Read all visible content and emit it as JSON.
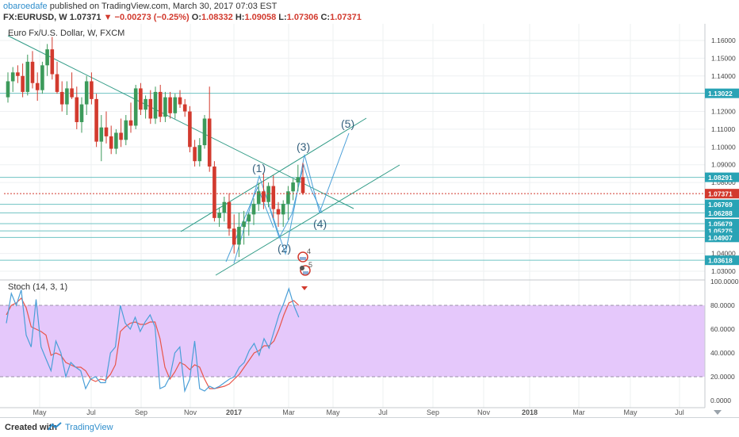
{
  "header": {
    "author": "obaroedafe",
    "published_text": " published on TradingView.com, March 30, 2017 07:03 EST",
    "symbol": "FX:EURUSD, W",
    "last": "1.07371",
    "change": "−0.00273 (−0.25%)",
    "o_label": "O:",
    "o_value": "1.08332",
    "h_label": "H:",
    "h_value": "1.09058",
    "l_label": "L:",
    "l_value": "1.07306",
    "c_label": "C:",
    "c_value": "1.07371"
  },
  "footer": {
    "created_with": "Created with",
    "brand": "TradingView"
  },
  "colors": {
    "up": "#3c9a5a",
    "down": "#d23a2e",
    "trend": "#2e9a85",
    "hline": "#6fc3c3",
    "wave": "#4a9fd8",
    "stoch_k": "#4a9fd8",
    "stoch_d": "#e8554a",
    "stoch_band": "#e5c8fb",
    "label_bg": "#29a3b5"
  },
  "icons": [
    "stoch-down-arrow-icon",
    "event-flag-icon",
    "chart-settings-icon",
    "tradingview-logo-icon"
  ],
  "chart_data": {
    "type": "candlestick",
    "title": "Euro Fx/U.S. Dollar, W, FXCM",
    "y_range": [
      1.025,
      1.168
    ],
    "y_ticks": [
      "1.16000",
      "1.15000",
      "1.14000",
      "1.12000",
      "1.11000",
      "1.10000",
      "1.09000",
      "1.08000",
      "1.04000",
      "1.03000"
    ],
    "x_tick_labels": [
      "May",
      "Jul",
      "Sep",
      "Nov",
      "2017",
      "Mar",
      "May",
      "Jul",
      "Sep",
      "Nov",
      "2018",
      "Mar",
      "May",
      "Jul"
    ],
    "candles": [
      [
        1.128,
        1.142,
        1.125,
        1.137
      ],
      [
        1.137,
        1.145,
        1.131,
        1.142
      ],
      [
        1.142,
        1.146,
        1.136,
        1.14
      ],
      [
        1.14,
        1.147,
        1.128,
        1.131
      ],
      [
        1.131,
        1.152,
        1.129,
        1.148
      ],
      [
        1.148,
        1.154,
        1.133,
        1.136
      ],
      [
        1.136,
        1.142,
        1.126,
        1.132
      ],
      [
        1.132,
        1.148,
        1.13,
        1.146
      ],
      [
        1.146,
        1.158,
        1.14,
        1.155
      ],
      [
        1.155,
        1.162,
        1.138,
        1.141
      ],
      [
        1.141,
        1.148,
        1.13,
        1.131
      ],
      [
        1.131,
        1.137,
        1.12,
        1.124
      ],
      [
        1.124,
        1.137,
        1.118,
        1.133
      ],
      [
        1.133,
        1.142,
        1.127,
        1.128
      ],
      [
        1.128,
        1.134,
        1.11,
        1.114
      ],
      [
        1.114,
        1.128,
        1.108,
        1.124
      ],
      [
        1.124,
        1.14,
        1.118,
        1.137
      ],
      [
        1.137,
        1.142,
        1.124,
        1.127
      ],
      [
        1.127,
        1.13,
        1.1,
        1.103
      ],
      [
        1.103,
        1.118,
        1.092,
        1.111
      ],
      [
        1.111,
        1.12,
        1.102,
        1.106
      ],
      [
        1.106,
        1.112,
        1.096,
        1.099
      ],
      [
        1.099,
        1.11,
        1.096,
        1.108
      ],
      [
        1.108,
        1.116,
        1.1,
        1.104
      ],
      [
        1.104,
        1.118,
        1.101,
        1.115
      ],
      [
        1.115,
        1.125,
        1.108,
        1.112
      ],
      [
        1.112,
        1.135,
        1.11,
        1.133
      ],
      [
        1.133,
        1.136,
        1.118,
        1.121
      ],
      [
        1.121,
        1.129,
        1.116,
        1.127
      ],
      [
        1.127,
        1.132,
        1.113,
        1.116
      ],
      [
        1.116,
        1.134,
        1.113,
        1.131
      ],
      [
        1.131,
        1.135,
        1.114,
        1.117
      ],
      [
        1.117,
        1.131,
        1.114,
        1.128
      ],
      [
        1.128,
        1.131,
        1.116,
        1.119
      ],
      [
        1.119,
        1.13,
        1.116,
        1.128
      ],
      [
        1.128,
        1.132,
        1.122,
        1.124
      ],
      [
        1.124,
        1.127,
        1.117,
        1.12
      ],
      [
        1.12,
        1.123,
        1.097,
        1.1
      ],
      [
        1.1,
        1.104,
        1.089,
        1.092
      ],
      [
        1.092,
        1.105,
        1.089,
        1.101
      ],
      [
        1.101,
        1.118,
        1.099,
        1.116
      ],
      [
        1.116,
        1.134,
        1.086,
        1.089
      ],
      [
        1.089,
        1.092,
        1.058,
        1.06
      ],
      [
        1.06,
        1.066,
        1.055,
        1.063
      ],
      [
        1.063,
        1.072,
        1.058,
        1.069
      ],
      [
        1.069,
        1.074,
        1.05,
        1.054
      ],
      [
        1.054,
        1.062,
        1.04,
        1.045
      ],
      [
        1.045,
        1.063,
        1.038,
        1.055
      ],
      [
        1.055,
        1.064,
        1.045,
        1.058
      ],
      [
        1.058,
        1.063,
        1.05,
        1.062
      ],
      [
        1.062,
        1.071,
        1.056,
        1.068
      ],
      [
        1.068,
        1.08,
        1.064,
        1.075
      ],
      [
        1.075,
        1.085,
        1.065,
        1.069
      ],
      [
        1.069,
        1.08,
        1.066,
        1.078
      ],
      [
        1.078,
        1.084,
        1.06,
        1.065
      ],
      [
        1.065,
        1.069,
        1.055,
        1.062
      ],
      [
        1.062,
        1.07,
        1.055,
        1.068
      ],
      [
        1.068,
        1.078,
        1.059,
        1.075
      ],
      [
        1.075,
        1.082,
        1.07,
        1.08
      ],
      [
        1.08,
        1.09,
        1.075,
        1.083
      ],
      [
        1.083,
        1.091,
        1.073,
        1.074
      ]
    ],
    "horizontal_levels": [
      {
        "value": 1.13022,
        "label": "1.13022"
      },
      {
        "value": 1.08291,
        "label": "1.08291"
      },
      {
        "value": 1.06769,
        "label": "1.06769"
      },
      {
        "value": 1.06288,
        "label": "1.06288"
      },
      {
        "value": 1.05679,
        "label": "1.05679"
      },
      {
        "value": 1.05275,
        "label": "1.05275"
      },
      {
        "value": 1.04907,
        "label": "1.04907"
      },
      {
        "value": 1.03618,
        "label": "1.03618"
      }
    ],
    "last_price": {
      "value": 1.07371,
      "label": "1.07371"
    },
    "wave_labels": [
      "(1)",
      "(2)",
      "(3)",
      "(4)",
      "(5)"
    ],
    "event_marker_texts": [
      "4",
      "5"
    ],
    "stochastic": {
      "title": "Stoch (14, 3, 1)",
      "y_range": [
        0,
        100
      ],
      "y_ticks": [
        "100.0000",
        "80.0000",
        "60.0000",
        "40.0000",
        "20.0000",
        "0.0000"
      ],
      "band": [
        20,
        80
      ],
      "k": [
        65,
        90,
        80,
        93,
        55,
        45,
        85,
        45,
        35,
        25,
        50,
        40,
        20,
        32,
        28,
        25,
        10,
        18,
        20,
        15,
        15,
        40,
        45,
        80,
        65,
        60,
        70,
        58,
        66,
        72,
        62,
        10,
        12,
        20,
        40,
        45,
        8,
        18,
        50,
        10,
        8,
        12,
        10,
        12,
        15,
        18,
        20,
        28,
        32,
        42,
        48,
        38,
        52,
        44,
        58,
        72,
        82,
        94,
        80,
        70
      ],
      "d": [
        72,
        80,
        82,
        86,
        78,
        62,
        60,
        58,
        55,
        38,
        40,
        38,
        32,
        30,
        28,
        28,
        25,
        18,
        16,
        18,
        17,
        22,
        30,
        58,
        62,
        65,
        66,
        64,
        64,
        66,
        66,
        52,
        28,
        18,
        24,
        32,
        30,
        26,
        30,
        28,
        18,
        10,
        10,
        11,
        12,
        14,
        18,
        22,
        28,
        34,
        40,
        42,
        46,
        46,
        50,
        60,
        72,
        82,
        84,
        80
      ]
    }
  }
}
